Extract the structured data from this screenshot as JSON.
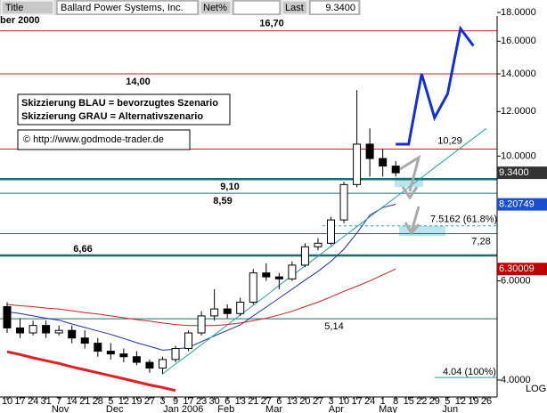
{
  "header": {
    "title_field": "Title",
    "instrument": "Ballard Power Systems, Inc.",
    "change_field": "Net%",
    "last_field": "Last",
    "last_value": "9.3400",
    "period": "ber 2000"
  },
  "notes": [
    "Skizzierung BLAU = bevorzugtes Szenario",
    "Skizzierung GRAU = Alternativszenario",
    "© http://www.godmode-trader.de"
  ],
  "chart_data": {
    "type": "candlestick",
    "log_scale": true,
    "scale_label": "LOG",
    "categories": [
      "10",
      "17",
      "24",
      "31",
      "7",
      "14",
      "21",
      "28",
      "5",
      "12",
      "19",
      "27",
      "3",
      "9",
      "17",
      "23",
      "30",
      "6",
      "13",
      "21",
      "27",
      "6",
      "13",
      "20",
      "27",
      "3",
      "10",
      "17",
      "24",
      "1",
      "8",
      "15",
      "22",
      "29",
      "5",
      "12",
      "19",
      "26"
    ],
    "months": [
      "Nov",
      "Dec",
      "Jan 2006",
      "Feb",
      "Mar",
      "Apr",
      "May",
      "Jun"
    ],
    "open": [
      5.4,
      4.95,
      4.85,
      5.0,
      4.85,
      4.9,
      4.75,
      4.65,
      4.5,
      4.45,
      4.4,
      4.3,
      4.2,
      4.35,
      4.55,
      4.85,
      5.2,
      5.35,
      5.25,
      5.5,
      6.2,
      6.1,
      6.05,
      6.4,
      6.9,
      7.0,
      7.7,
      8.9,
      10.5,
      9.9,
      9.6,
      null,
      null,
      null,
      null,
      null,
      null,
      null
    ],
    "high": [
      5.5,
      5.15,
      5.1,
      5.1,
      5.0,
      5.0,
      4.9,
      4.75,
      4.65,
      4.55,
      4.5,
      4.35,
      4.4,
      4.6,
      4.9,
      5.3,
      5.8,
      5.45,
      5.6,
      6.3,
      6.45,
      6.2,
      6.5,
      7.0,
      7.15,
      7.8,
      9.0,
      13.1,
      11.2,
      10.3,
      9.8,
      null,
      null,
      null,
      null,
      null,
      null,
      null
    ],
    "low": [
      4.85,
      4.75,
      4.8,
      4.75,
      4.8,
      4.65,
      4.55,
      4.4,
      4.35,
      4.3,
      4.25,
      4.12,
      4.1,
      4.3,
      4.5,
      4.8,
      5.1,
      5.15,
      5.2,
      5.45,
      6.0,
      5.8,
      6.0,
      6.35,
      6.8,
      6.95,
      7.6,
      8.8,
      9.2,
      9.2,
      9.2,
      null,
      null,
      null,
      null,
      null,
      null,
      null
    ],
    "close": [
      4.95,
      4.85,
      5.0,
      4.85,
      4.9,
      4.75,
      4.65,
      4.5,
      4.45,
      4.4,
      4.3,
      4.2,
      4.35,
      4.55,
      4.85,
      5.2,
      5.35,
      5.25,
      5.5,
      6.2,
      6.1,
      6.05,
      6.4,
      6.9,
      7.0,
      7.7,
      8.9,
      10.5,
      9.9,
      9.6,
      9.34,
      null,
      null,
      null,
      null,
      null,
      null,
      null
    ],
    "candle_up_color": "#ffffff",
    "candle_down_color": "#000000",
    "lines": [
      {
        "color": "#1f2fa8",
        "width": 1,
        "values": [
          5.29,
          5.25,
          5.2,
          5.15,
          5.11,
          5.03,
          4.96,
          4.89,
          4.82,
          4.74,
          4.66,
          4.59,
          4.52,
          4.54,
          4.57,
          4.68,
          4.79,
          4.9,
          5.01,
          5.2,
          5.39,
          5.59,
          5.8,
          6.02,
          6.24,
          6.5,
          6.83,
          7.3,
          7.85,
          8.1,
          8.21,
          null,
          null,
          null,
          null,
          null,
          null,
          null
        ]
      },
      {
        "color": "#cc2020",
        "width": 1,
        "values": [
          5.45,
          5.42,
          5.4,
          5.37,
          5.35,
          5.31,
          5.27,
          5.24,
          5.2,
          5.16,
          5.12,
          5.09,
          5.05,
          5.02,
          5.0,
          5.0,
          5.0,
          5.02,
          5.05,
          5.1,
          5.15,
          5.22,
          5.3,
          5.4,
          5.5,
          5.62,
          5.75,
          5.87,
          6.0,
          6.15,
          6.3,
          null,
          null,
          null,
          null,
          null,
          null,
          null
        ]
      },
      {
        "color": "#2aa0a8",
        "width": 1,
        "values": [
          null,
          null,
          null,
          null,
          null,
          null,
          null,
          null,
          null,
          null,
          null,
          null,
          4.1,
          4.27,
          4.44,
          4.62,
          4.81,
          5.01,
          5.22,
          5.43,
          5.65,
          5.89,
          6.13,
          6.38,
          6.64,
          6.91,
          7.2,
          7.49,
          7.8,
          8.12,
          8.45,
          8.8,
          9.16,
          9.54,
          9.93,
          10.34,
          10.76,
          11.2
        ]
      },
      {
        "color": "#e02020",
        "width": 3,
        "values": [
          4.49,
          4.44,
          4.38,
          4.33,
          4.28,
          4.22,
          4.17,
          4.12,
          4.07,
          4.02,
          3.97,
          3.92,
          3.88,
          3.83,
          null,
          null,
          null,
          null,
          null,
          null,
          null,
          null,
          null,
          null,
          null,
          null,
          null,
          null,
          null,
          null,
          null,
          null,
          null,
          null,
          null,
          null,
          null,
          null
        ]
      },
      {
        "color": "#1030e0",
        "width": 3,
        "values": [
          null,
          null,
          null,
          null,
          null,
          null,
          null,
          null,
          null,
          null,
          null,
          null,
          null,
          null,
          null,
          null,
          null,
          null,
          null,
          null,
          null,
          null,
          null,
          null,
          null,
          null,
          null,
          null,
          null,
          null,
          10.5,
          10.5,
          14.0,
          11.7,
          12.9,
          16.85,
          15.7,
          null
        ]
      }
    ],
    "levels": [
      {
        "value": 16.7,
        "label": "16,70",
        "color": "#cc2020",
        "width": 1
      },
      {
        "value": 14.0,
        "label": "14,00",
        "color": "#cc2020",
        "width": 1
      },
      {
        "value": 10.29,
        "label": "10,29",
        "color": "#cc2020",
        "width": 1
      },
      {
        "value": 9.1,
        "label": "9,10",
        "color": "#1e6b6b",
        "width": 2.5
      },
      {
        "value": 8.59,
        "label": "8,59",
        "color": "#1e6b6b",
        "width": 1
      },
      {
        "value": 7.5162,
        "label": "7.5162 (61.8%)",
        "color": "#2aa0a8",
        "width": 1,
        "dashed": true
      },
      {
        "value": 7.28,
        "label": "7,28",
        "color": "#1e6b6b",
        "width": 1
      },
      {
        "value": 6.66,
        "label": "6,66",
        "color": "#1e6b6b",
        "width": 2.5
      },
      {
        "value": 5.14,
        "label": "5,14",
        "color": "#1e6b6b",
        "width": 1
      },
      {
        "value": 4.04,
        "label": "4.04 (100%)",
        "color": "#2aa0a8",
        "width": 1
      }
    ],
    "price_markers": [
      {
        "value": 9.34,
        "label": "9.3400",
        "color": "#333333"
      },
      {
        "value": 8.20749,
        "label": "8.20749",
        "color": "#1a4fd1"
      },
      {
        "value": 6.30009,
        "label": "6.30009",
        "color": "#c00000"
      }
    ],
    "ylim": [
      3.8,
      18.6
    ],
    "yticks": [
      {
        "value": 4,
        "label": "4.0000"
      },
      {
        "value": 6,
        "label": "6.0000"
      },
      {
        "value": 10,
        "label": "10.0000"
      },
      {
        "value": 12,
        "label": "12.0000"
      },
      {
        "value": 14,
        "label": "14.0000"
      },
      {
        "value": 16,
        "label": "16.0000"
      },
      {
        "value": 18,
        "label": "18.0000"
      }
    ]
  }
}
